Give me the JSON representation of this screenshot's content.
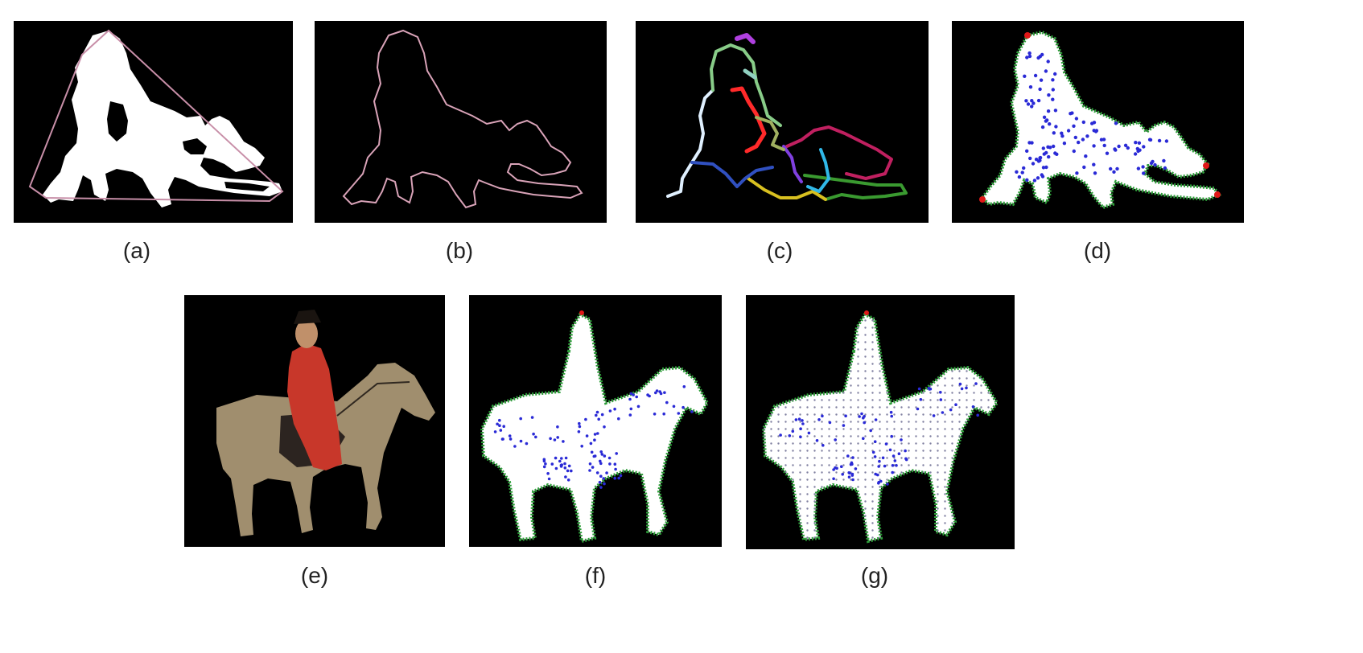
{
  "figure": {
    "panels": [
      {
        "id": "a",
        "caption": "(a)",
        "content": "binary silhouette with convex hull"
      },
      {
        "id": "b",
        "caption": "(b)",
        "content": "contour of silhouette"
      },
      {
        "id": "c",
        "caption": "(c)",
        "content": "colored skeleton segments"
      },
      {
        "id": "d",
        "caption": "(d)",
        "content": "silhouette with sampled points"
      },
      {
        "id": "e",
        "caption": "(e)",
        "content": "painting of rider on horse"
      },
      {
        "id": "f",
        "caption": "(f)",
        "content": "horse silhouette with sampled points"
      },
      {
        "id": "g",
        "caption": "(g)",
        "content": "horse silhouette with grid points"
      }
    ]
  },
  "colors": {
    "background": "#000000",
    "silhouette": "#ffffff",
    "contour": "#d9a3b8",
    "boundary_points": "#2e9e3a",
    "interior_points": "#2a2ad6",
    "corner_points": "#e01818",
    "robe": "#c8372a",
    "horse": "#a08e6e"
  }
}
